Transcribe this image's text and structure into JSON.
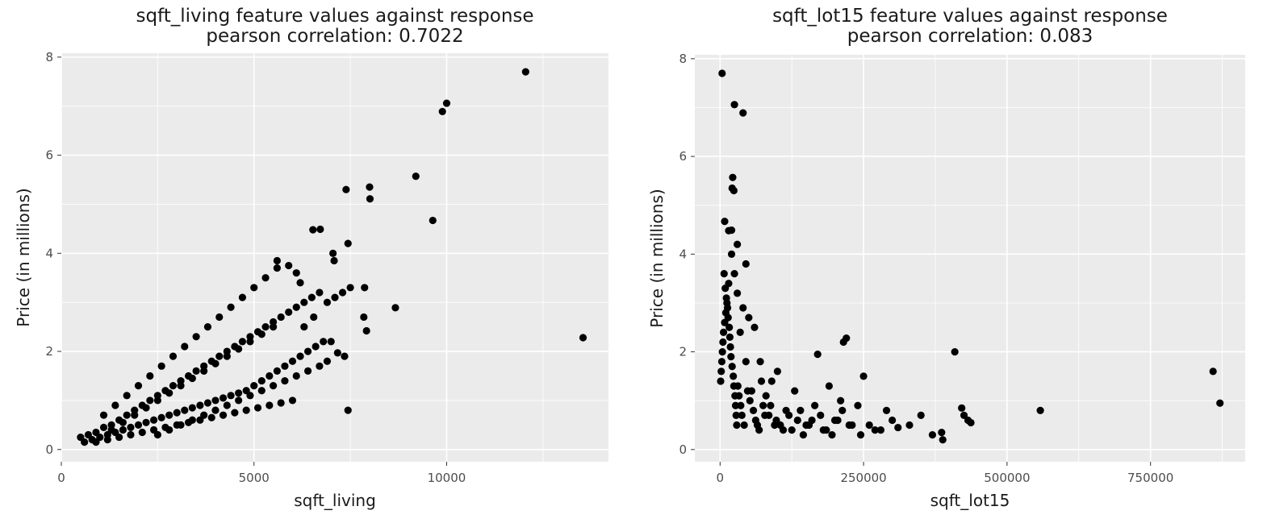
{
  "chart_data": [
    {
      "type": "scatter",
      "title": "sqft_living feature values against response",
      "subtitle": "pearson correlation: 0.7022",
      "xlabel": "sqft_living",
      "ylabel": "Price (in millions)",
      "xlim": [
        0,
        14200
      ],
      "ylim": [
        -0.25,
        8.08
      ],
      "xticks": [
        0,
        5000,
        10000
      ],
      "yticks": [
        0,
        2,
        4,
        6,
        8
      ],
      "grid": true,
      "legend": "none",
      "point_color": "#000000",
      "panel_color": "#ebebeb",
      "x": [
        12050,
        10000,
        9890,
        9200,
        9640,
        7390,
        8000,
        8010,
        6530,
        6720,
        7440,
        7050,
        7080,
        13540,
        8670,
        7440,
        7170,
        7350,
        7920,
        7850,
        7870,
        7500,
        7300,
        7100,
        6900,
        6200,
        6100,
        5900,
        5600,
        6550,
        6300,
        7000,
        500,
        600,
        700,
        800,
        900,
        1000,
        1100,
        1200,
        1300,
        1400,
        1500,
        1600,
        1700,
        1800,
        1900,
        2000,
        2100,
        2200,
        2300,
        2400,
        2500,
        2600,
        2700,
        2800,
        2900,
        3000,
        3100,
        3200,
        3300,
        3400,
        3500,
        3600,
        3700,
        3800,
        3900,
        4000,
        4100,
        4200,
        4300,
        4400,
        4500,
        4600,
        4700,
        4800,
        4900,
        5000,
        5100,
        5200,
        5300,
        5400,
        5500,
        5600,
        5700,
        5800,
        5900,
        6000,
        6100,
        6200,
        6300,
        6400,
        6500,
        6600,
        6700,
        6800,
        900,
        1200,
        1500,
        1800,
        2100,
        2400,
        2700,
        3000,
        3300,
        3600,
        3900,
        4200,
        4500,
        4800,
        5100,
        5400,
        5700,
        6000,
        1100,
        1400,
        1700,
        2000,
        2300,
        2600,
        2900,
        3200,
        3500,
        3800,
        4100,
        4400,
        4700,
        5000,
        5300,
        5600,
        1300,
        1600,
        1900,
        2200,
        2500,
        2800,
        3100,
        3400,
        3700,
        4000,
        4300,
        4600,
        4900,
        5200,
        5500,
        2500,
        2800,
        3100,
        3400,
        3700,
        4000,
        4300,
        4600,
        4900,
        5200,
        5500,
        5800,
        6100,
        6400,
        6700,
        6900
      ],
      "y": [
        7.7,
        7.06,
        6.89,
        5.57,
        4.67,
        5.3,
        5.35,
        5.11,
        4.48,
        4.49,
        4.2,
        4.0,
        3.85,
        2.28,
        2.89,
        0.8,
        1.97,
        1.9,
        2.42,
        2.7,
        3.3,
        3.3,
        3.2,
        3.1,
        3.0,
        3.4,
        3.6,
        3.75,
        3.85,
        2.7,
        2.5,
        2.2,
        0.25,
        0.15,
        0.3,
        0.2,
        0.35,
        0.25,
        0.45,
        0.3,
        0.5,
        0.35,
        0.6,
        0.4,
        0.7,
        0.45,
        0.8,
        0.5,
        0.9,
        0.55,
        1.0,
        0.6,
        1.1,
        0.65,
        1.2,
        0.7,
        1.3,
        0.75,
        1.4,
        0.8,
        1.5,
        0.85,
        1.6,
        0.9,
        1.7,
        0.95,
        1.8,
        1.0,
        1.9,
        1.05,
        2.0,
        1.1,
        2.1,
        1.15,
        2.2,
        1.2,
        2.3,
        1.3,
        2.4,
        1.4,
        2.5,
        1.5,
        2.6,
        1.6,
        2.7,
        1.7,
        2.8,
        1.8,
        2.9,
        1.9,
        3.0,
        2.0,
        3.1,
        2.1,
        3.2,
        2.2,
        0.15,
        0.2,
        0.25,
        0.3,
        0.35,
        0.4,
        0.45,
        0.5,
        0.55,
        0.6,
        0.65,
        0.7,
        0.75,
        0.8,
        0.85,
        0.9,
        0.95,
        1.0,
        0.7,
        0.9,
        1.1,
        1.3,
        1.5,
        1.7,
        1.9,
        2.1,
        2.3,
        2.5,
        2.7,
        2.9,
        3.1,
        3.3,
        3.5,
        3.7,
        0.4,
        0.55,
        0.7,
        0.85,
        1.0,
        1.15,
        1.3,
        1.45,
        1.6,
        1.75,
        1.9,
        2.05,
        2.2,
        2.35,
        2.5,
        0.3,
        0.4,
        0.5,
        0.6,
        0.7,
        0.8,
        0.9,
        1.0,
        1.1,
        1.2,
        1.3,
        1.4,
        1.5,
        1.6,
        1.7,
        1.8
      ]
    },
    {
      "type": "scatter",
      "title": "sqft_lot15 feature values against response",
      "subtitle": "pearson correlation: 0.083",
      "xlabel": "sqft_lot15",
      "ylabel": "Price (in millions)",
      "xlim": [
        -44000,
        915000
      ],
      "ylim": [
        -0.25,
        8.08
      ],
      "xticks": [
        0,
        250000,
        500000,
        750000
      ],
      "yticks": [
        0,
        2,
        4,
        6,
        8
      ],
      "grid": true,
      "legend": "none",
      "point_color": "#000000",
      "panel_color": "#ebebeb",
      "x": [
        3500,
        25000,
        40000,
        22000,
        21000,
        24000,
        8000,
        15000,
        20000,
        30000,
        45000,
        409000,
        421000,
        425000,
        437000,
        432000,
        558000,
        859000,
        871000,
        388000,
        386000,
        370000,
        350000,
        330000,
        310000,
        300000,
        290000,
        270000,
        250000,
        240000,
        230000,
        220000,
        215000,
        213000,
        210000,
        200000,
        190000,
        180000,
        170000,
        165000,
        160000,
        150000,
        140000,
        130000,
        120000,
        110000,
        100000,
        95000,
        90000,
        85000,
        80000,
        75000,
        70000,
        65000,
        60000,
        55000,
        50000,
        45000,
        40000,
        35000,
        30000,
        25000,
        20000,
        15000,
        12000,
        10000,
        8000,
        6000,
        5000,
        4000,
        3000,
        2000,
        1000,
        7000,
        9000,
        11000,
        13000,
        14000,
        16000,
        17000,
        18000,
        19000,
        21000,
        23000,
        24000,
        26000,
        27000,
        28000,
        29000,
        31000,
        33000,
        36000,
        38000,
        42000,
        48000,
        52000,
        58000,
        62000,
        68000,
        72000,
        78000,
        88000,
        98000,
        105000,
        115000,
        125000,
        135000,
        145000,
        155000,
        175000,
        185000,
        195000,
        205000,
        225000,
        245000,
        260000,
        280000
      ],
      "y": [
        7.7,
        7.06,
        6.89,
        5.57,
        5.35,
        5.3,
        4.67,
        4.48,
        4.49,
        4.2,
        3.8,
        2.0,
        0.85,
        0.7,
        0.55,
        0.6,
        0.8,
        1.6,
        0.95,
        0.2,
        0.35,
        0.3,
        0.7,
        0.5,
        0.45,
        0.6,
        0.8,
        0.4,
        1.5,
        0.9,
        0.5,
        2.28,
        2.2,
        0.8,
        1.0,
        0.6,
        1.3,
        0.4,
        1.95,
        0.9,
        0.6,
        0.5,
        0.8,
        1.2,
        0.7,
        0.4,
        1.6,
        0.5,
        1.4,
        0.7,
        1.1,
        0.9,
        1.8,
        0.5,
        2.5,
        1.2,
        2.7,
        1.8,
        2.9,
        2.4,
        3.2,
        3.6,
        4.0,
        3.4,
        3.0,
        2.8,
        2.6,
        2.4,
        2.2,
        2.0,
        1.8,
        1.6,
        1.4,
        3.6,
        3.3,
        3.1,
        2.9,
        2.7,
        2.5,
        2.3,
        2.1,
        1.9,
        1.7,
        1.5,
        1.3,
        1.1,
        0.9,
        0.7,
        0.5,
        1.3,
        1.1,
        0.9,
        0.7,
        0.5,
        1.2,
        1.0,
        0.8,
        0.6,
        0.4,
        1.4,
        0.7,
        0.9,
        0.6,
        0.5,
        0.8,
        0.4,
        0.6,
        0.3,
        0.5,
        0.7,
        0.4,
        0.3,
        0.6,
        0.5,
        0.3,
        0.5,
        0.4
      ]
    }
  ]
}
